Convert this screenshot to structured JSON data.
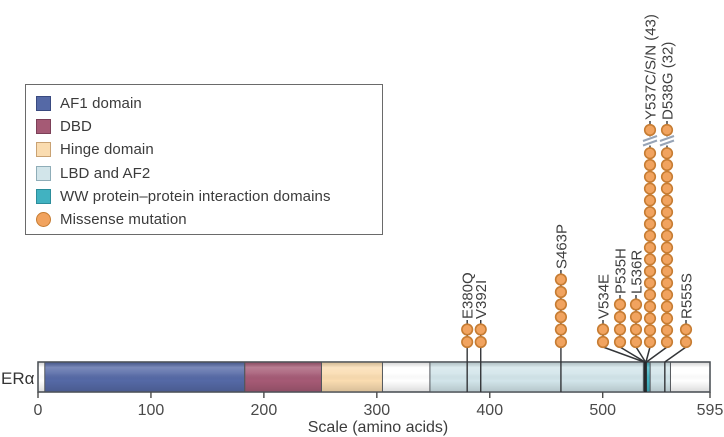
{
  "figure": {
    "protein_label": "ERα",
    "axis": {
      "label": "Scale (amino acids)",
      "ticks": [
        0,
        100,
        200,
        300,
        400,
        500,
        595
      ],
      "max": 595
    }
  },
  "legend": {
    "items": [
      {
        "label": "AF1 domain",
        "color": "#5569a6",
        "border": "#394a80",
        "shape": "square"
      },
      {
        "label": "DBD",
        "color": "#a55a75",
        "border": "#7c4058",
        "shape": "square"
      },
      {
        "label": "Hinge domain",
        "color": "#fadcb0",
        "border": "#c9a273",
        "shape": "square"
      },
      {
        "label": "LBD and AF2",
        "color": "#d2e5ea",
        "border": "#8fadb8",
        "shape": "square"
      },
      {
        "label": "WW protein–protein interaction domains",
        "color": "#41b2c1",
        "border": "#2c8d9b",
        "shape": "square"
      },
      {
        "label": "Missense mutation",
        "color": "#f1a35f",
        "border": "#c67c32",
        "shape": "circle"
      }
    ]
  },
  "chart_data": {
    "type": "lollipop-protein-domain",
    "protein": "ERα",
    "xlabel": "Scale (amino acids)",
    "xlim": [
      0,
      595
    ],
    "x_ticks": [
      0,
      100,
      200,
      300,
      400,
      500,
      595
    ],
    "legend_position": "top-left",
    "domains": [
      {
        "name": "AF1 domain",
        "start": 6,
        "end": 183,
        "color": "#5569a6"
      },
      {
        "name": "DBD",
        "start": 183,
        "end": 251,
        "color": "#a55a75"
      },
      {
        "name": "Hinge domain",
        "start": 251,
        "end": 305,
        "color": "#fadcb0"
      },
      {
        "name": "LBD and AF2",
        "start": 347,
        "end": 560,
        "color": "#d2e5ea"
      },
      {
        "name": "WW protein–protein interaction domains",
        "start": 536,
        "end": 542,
        "color": "#41b2c1"
      }
    ],
    "mutations": [
      {
        "label": "E380Q",
        "position": 380,
        "count": 2,
        "truncated": false
      },
      {
        "label": "V392I",
        "position": 392,
        "count": 2,
        "truncated": false
      },
      {
        "label": "S463P",
        "position": 463,
        "count": 6,
        "truncated": false
      },
      {
        "label": "V534E",
        "position": 534,
        "count": 2,
        "truncated": false
      },
      {
        "label": "P535H",
        "position": 535,
        "count": 4,
        "truncated": false
      },
      {
        "label": "L536R",
        "position": 536,
        "count": 4,
        "truncated": false
      },
      {
        "label": "Y537C/S/N (43)",
        "position": 537,
        "count": 43,
        "truncated": true
      },
      {
        "label": "D538G (32)",
        "position": 538,
        "count": 32,
        "truncated": true
      },
      {
        "label": "R555S",
        "position": 555,
        "count": 2,
        "truncated": false
      }
    ],
    "marker_color": "#f1a35f",
    "marker_border": "#c67c32"
  }
}
